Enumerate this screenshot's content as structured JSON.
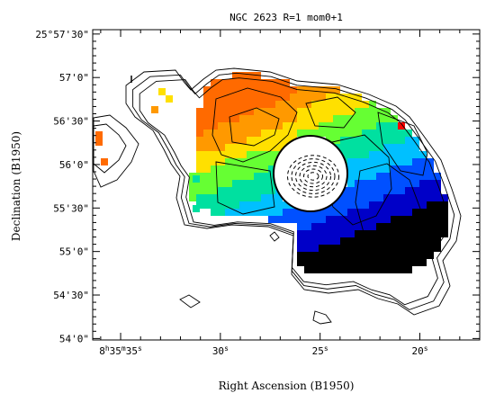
{
  "chart_data": {
    "type": "heatmap",
    "title": "NGC 2623 R=1 mom0+1",
    "xlabel": "Right Ascension (B1950)",
    "ylabel": "Declination (B1950)",
    "x_ticks": [
      {
        "label": "8h35m35s",
        "parts": [
          "8",
          "h",
          "35",
          "m",
          "35",
          "s"
        ],
        "value": 35
      },
      {
        "label": "30s",
        "parts": [
          "30",
          "s"
        ],
        "value": 30
      },
      {
        "label": "25s",
        "parts": [
          "25",
          "s"
        ],
        "value": 25
      },
      {
        "label": "20s",
        "parts": [
          "20",
          "s"
        ],
        "value": 20
      }
    ],
    "y_ticks": [
      {
        "label": "25°57'30\"",
        "value": 3450
      },
      {
        "label": "57'0\"",
        "value": 3420
      },
      {
        "label": "56'30\"",
        "value": 3390
      },
      {
        "label": "56'0\"",
        "value": 3360
      },
      {
        "label": "55'30\"",
        "value": 3330
      },
      {
        "label": "55'0\"",
        "value": 3300
      },
      {
        "label": "54'30\"",
        "value": 3270
      },
      {
        "label": "54'0\"",
        "value": 3240
      }
    ],
    "x_unit": "seconds of RA (8h35m + s)",
    "y_unit": "arcsec offset from 25°0'0\"",
    "xlim": [
      36.4,
      17.0
    ],
    "ylim": [
      3239,
      3453
    ],
    "color_map": "velocity (rainbow: red = high, blue/black = low)",
    "color_stops": [
      "#ff0000",
      "#ff6a00",
      "#ff9900",
      "#ffe000",
      "#66ff33",
      "#00e0a0",
      "#00c0ff",
      "#0050ff",
      "#0000c8",
      "#000000"
    ],
    "colors": {
      "frame": "#000000",
      "contour": "#000000",
      "background": "#ffffff"
    },
    "grid": false
  }
}
